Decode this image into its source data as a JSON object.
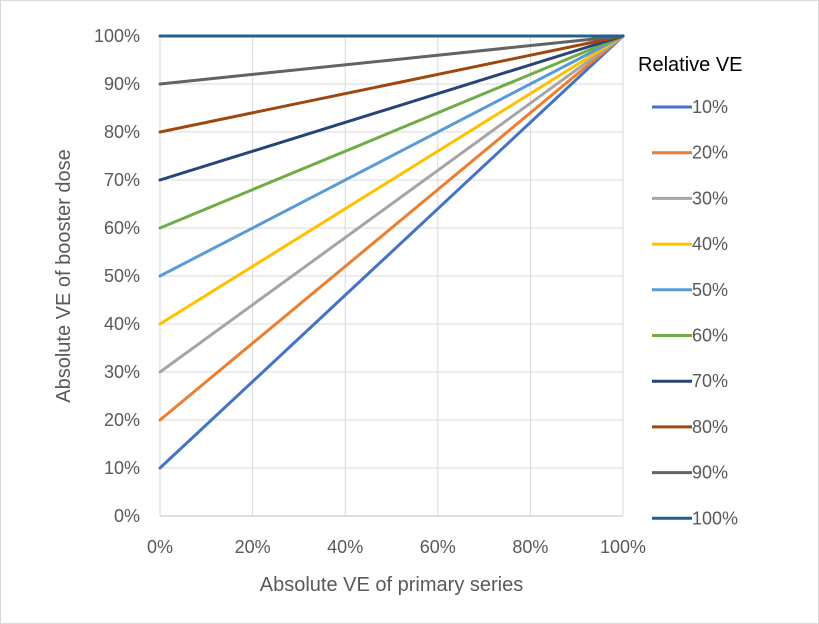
{
  "chart_data": {
    "type": "line",
    "title": "",
    "xlabel": "Absolute VE of primary series",
    "ylabel": "Absolute VE of booster dose",
    "xlim": [
      0,
      1
    ],
    "ylim": [
      0,
      1
    ],
    "x_ticks": [
      0,
      0.2,
      0.4,
      0.6,
      0.8,
      1.0
    ],
    "x_tick_labels": [
      "0%",
      "20%",
      "40%",
      "60%",
      "80%",
      "100%"
    ],
    "y_ticks": [
      0,
      0.1,
      0.2,
      0.3,
      0.4,
      0.5,
      0.6,
      0.7,
      0.8,
      0.9,
      1.0
    ],
    "y_tick_labels": [
      "0%",
      "10%",
      "20%",
      "30%",
      "40%",
      "50%",
      "60%",
      "70%",
      "80%",
      "90%",
      "100%"
    ],
    "grid": true,
    "legend": {
      "title": "Relative VE",
      "position": "right"
    },
    "series": [
      {
        "name": "10%",
        "color": "#4472C4",
        "x": [
          0,
          1
        ],
        "y": [
          0.1,
          1.0
        ]
      },
      {
        "name": "20%",
        "color": "#ED7D31",
        "x": [
          0,
          1
        ],
        "y": [
          0.2,
          1.0
        ]
      },
      {
        "name": "30%",
        "color": "#A5A5A5",
        "x": [
          0,
          1
        ],
        "y": [
          0.3,
          1.0
        ]
      },
      {
        "name": "40%",
        "color": "#FFC000",
        "x": [
          0,
          1
        ],
        "y": [
          0.4,
          1.0
        ]
      },
      {
        "name": "50%",
        "color": "#5B9BD5",
        "x": [
          0,
          1
        ],
        "y": [
          0.5,
          1.0
        ]
      },
      {
        "name": "60%",
        "color": "#70AD47",
        "x": [
          0,
          1
        ],
        "y": [
          0.6,
          1.0
        ]
      },
      {
        "name": "70%",
        "color": "#264478",
        "x": [
          0,
          1
        ],
        "y": [
          0.7,
          1.0
        ]
      },
      {
        "name": "80%",
        "color": "#9E480E",
        "x": [
          0,
          1
        ],
        "y": [
          0.8,
          1.0
        ]
      },
      {
        "name": "90%",
        "color": "#636363",
        "x": [
          0,
          1
        ],
        "y": [
          0.9,
          1.0
        ]
      },
      {
        "name": "100%",
        "color": "#255E91",
        "x": [
          0,
          1
        ],
        "y": [
          1.0,
          1.0
        ]
      }
    ]
  }
}
